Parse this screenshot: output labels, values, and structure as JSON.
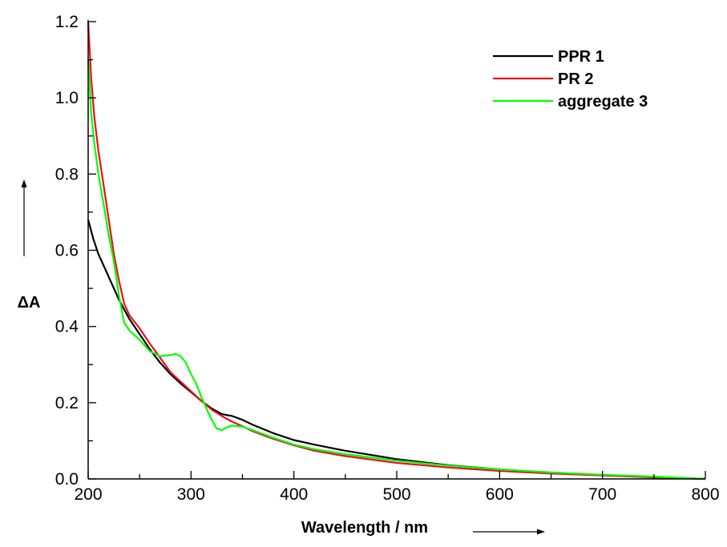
{
  "chart_data": {
    "type": "line",
    "title": "",
    "xlabel": "Wavelength / nm",
    "ylabel": "ΔA",
    "xlim": [
      200,
      800
    ],
    "ylim": [
      0.0,
      1.2
    ],
    "x_ticks": [
      "200",
      "300",
      "400",
      "500",
      "600",
      "700",
      "800"
    ],
    "y_ticks": [
      "0.0",
      "0.2",
      "0.4",
      "0.6",
      "0.8",
      "1.0",
      "1.2"
    ],
    "legend_position": "top-right",
    "grid": false,
    "series": [
      {
        "name": "PPR 1",
        "color": "#000000",
        "points": [
          [
            200,
            0.68
          ],
          [
            205,
            0.63
          ],
          [
            210,
            0.59
          ],
          [
            220,
            0.53
          ],
          [
            230,
            0.47
          ],
          [
            240,
            0.42
          ],
          [
            250,
            0.38
          ],
          [
            260,
            0.34
          ],
          [
            270,
            0.305
          ],
          [
            280,
            0.275
          ],
          [
            290,
            0.25
          ],
          [
            300,
            0.228
          ],
          [
            310,
            0.205
          ],
          [
            320,
            0.185
          ],
          [
            330,
            0.17
          ],
          [
            340,
            0.165
          ],
          [
            350,
            0.155
          ],
          [
            360,
            0.142
          ],
          [
            380,
            0.12
          ],
          [
            400,
            0.102
          ],
          [
            420,
            0.09
          ],
          [
            450,
            0.074
          ],
          [
            500,
            0.052
          ],
          [
            550,
            0.036
          ],
          [
            600,
            0.025
          ],
          [
            650,
            0.016
          ],
          [
            700,
            0.01
          ],
          [
            750,
            0.005
          ],
          [
            800,
            0.0
          ]
        ]
      },
      {
        "name": "PR 2",
        "color": "#e8111b",
        "points": [
          [
            200,
            1.2
          ],
          [
            203,
            1.05
          ],
          [
            206,
            0.95
          ],
          [
            210,
            0.86
          ],
          [
            215,
            0.77
          ],
          [
            220,
            0.68
          ],
          [
            225,
            0.59
          ],
          [
            230,
            0.52
          ],
          [
            235,
            0.46
          ],
          [
            240,
            0.43
          ],
          [
            250,
            0.395
          ],
          [
            260,
            0.355
          ],
          [
            270,
            0.318
          ],
          [
            280,
            0.28
          ],
          [
            290,
            0.255
          ],
          [
            300,
            0.23
          ],
          [
            310,
            0.205
          ],
          [
            320,
            0.182
          ],
          [
            330,
            0.165
          ],
          [
            340,
            0.15
          ],
          [
            350,
            0.138
          ],
          [
            360,
            0.125
          ],
          [
            380,
            0.105
          ],
          [
            400,
            0.088
          ],
          [
            420,
            0.074
          ],
          [
            450,
            0.06
          ],
          [
            500,
            0.042
          ],
          [
            550,
            0.03
          ],
          [
            600,
            0.021
          ],
          [
            650,
            0.014
          ],
          [
            700,
            0.009
          ],
          [
            750,
            0.004
          ],
          [
            800,
            0.0
          ]
        ]
      },
      {
        "name": "aggregate 3",
        "color": "#00ff00",
        "points": [
          [
            200,
            1.1
          ],
          [
            203,
            0.96
          ],
          [
            206,
            0.88
          ],
          [
            210,
            0.8
          ],
          [
            215,
            0.72
          ],
          [
            220,
            0.64
          ],
          [
            225,
            0.57
          ],
          [
            230,
            0.48
          ],
          [
            235,
            0.41
          ],
          [
            240,
            0.39
          ],
          [
            250,
            0.365
          ],
          [
            260,
            0.335
          ],
          [
            270,
            0.322
          ],
          [
            280,
            0.325
          ],
          [
            285,
            0.328
          ],
          [
            290,
            0.322
          ],
          [
            295,
            0.305
          ],
          [
            300,
            0.275
          ],
          [
            305,
            0.25
          ],
          [
            310,
            0.215
          ],
          [
            315,
            0.185
          ],
          [
            320,
            0.155
          ],
          [
            325,
            0.132
          ],
          [
            330,
            0.128
          ],
          [
            335,
            0.136
          ],
          [
            340,
            0.14
          ],
          [
            350,
            0.137
          ],
          [
            360,
            0.128
          ],
          [
            380,
            0.108
          ],
          [
            400,
            0.09
          ],
          [
            420,
            0.078
          ],
          [
            450,
            0.065
          ],
          [
            500,
            0.048
          ],
          [
            550,
            0.035
          ],
          [
            600,
            0.025
          ],
          [
            650,
            0.017
          ],
          [
            700,
            0.011
          ],
          [
            750,
            0.006
          ],
          [
            800,
            0.0
          ]
        ]
      }
    ]
  }
}
